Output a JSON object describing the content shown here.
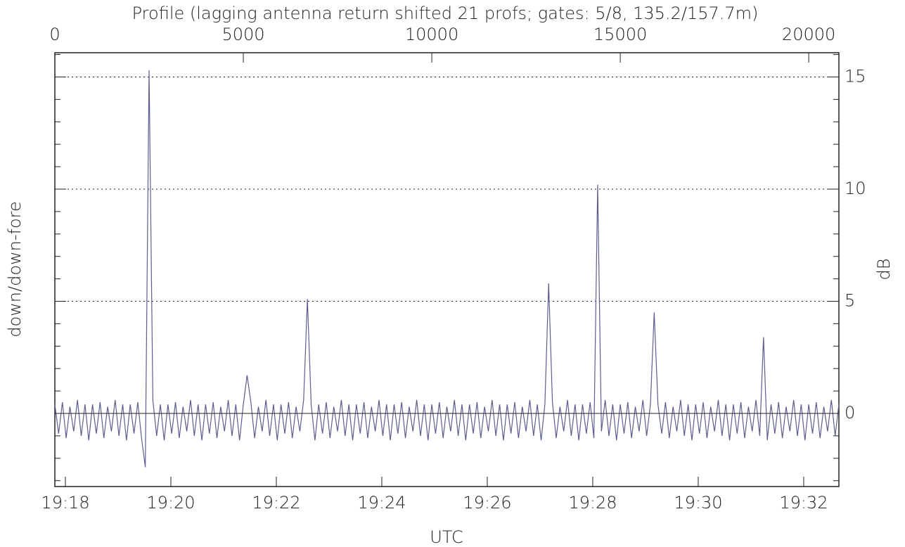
{
  "chart_data": {
    "type": "line",
    "title": "Profile (lagging antenna return shifted 21 profs; gates: 5/8, 135.2/157.7m)",
    "xlabel": "UTC",
    "ylabel": "down/down-fore",
    "ylabel_right": "dB",
    "xlim": [
      0,
      20800
    ],
    "ylim": [
      -3.26,
      16.08
    ],
    "xticks": [
      0,
      5000,
      10000,
      15000,
      20000
    ],
    "x2ticks": [
      {
        "value": 280,
        "label": "19:18"
      },
      {
        "value": 3078,
        "label": "19:20"
      },
      {
        "value": 5876,
        "label": "19:22"
      },
      {
        "value": 8674,
        "label": "19:24"
      },
      {
        "value": 11472,
        "label": "19:26"
      },
      {
        "value": 14270,
        "label": "19:28"
      },
      {
        "value": 17068,
        "label": "19:30"
      },
      {
        "value": 19866,
        "label": "19:32"
      }
    ],
    "yticks": [
      0,
      5,
      10,
      15
    ],
    "yminorticks": [
      -3,
      -2,
      -1,
      1,
      2,
      3,
      4,
      6,
      7,
      8,
      9,
      11,
      12,
      13,
      14,
      16
    ],
    "grid": true,
    "series": [
      {
        "color": "#5d5d92",
        "x": [
          0,
          100,
          200,
          300,
          400,
          500,
          600,
          700,
          800,
          900,
          1000,
          1100,
          1200,
          1300,
          1400,
          1500,
          1600,
          1700,
          1800,
          1900,
          2000,
          2100,
          2200,
          2300,
          2400,
          2500,
          2600,
          2700,
          2800,
          2900,
          3000,
          3100,
          3200,
          3300,
          3400,
          3500,
          3600,
          3700,
          3800,
          3900,
          4000,
          4100,
          4200,
          4300,
          4400,
          4500,
          4600,
          4700,
          4800,
          4900,
          5000,
          5100,
          5200,
          5300,
          5400,
          5500,
          5600,
          5700,
          5800,
          5900,
          6000,
          6100,
          6200,
          6300,
          6400,
          6500,
          6600,
          6700,
          6800,
          6900,
          7000,
          7100,
          7200,
          7300,
          7400,
          7500,
          7600,
          7700,
          7800,
          7900,
          8000,
          8100,
          8200,
          8300,
          8400,
          8500,
          8600,
          8700,
          8800,
          8900,
          9000,
          9100,
          9200,
          9300,
          9400,
          9500,
          9600,
          9700,
          9800,
          9900,
          10000,
          10100,
          10200,
          10300,
          10400,
          10500,
          10600,
          10700,
          10800,
          10900,
          11000,
          11100,
          11200,
          11300,
          11400,
          11500,
          11600,
          11700,
          11800,
          11900,
          12000,
          12100,
          12200,
          12300,
          12400,
          12500,
          12600,
          12700,
          12800,
          12900,
          13000,
          13100,
          13200,
          13300,
          13400,
          13500,
          13600,
          13700,
          13800,
          13900,
          14000,
          14100,
          14200,
          14300,
          14400,
          14500,
          14600,
          14700,
          14800,
          14900,
          15000,
          15100,
          15200,
          15300,
          15400,
          15500,
          15600,
          15700,
          15800,
          15900,
          16000,
          16100,
          16200,
          16300,
          16400,
          16500,
          16600,
          16700,
          16800,
          16900,
          17000,
          17100,
          17200,
          17300,
          17400,
          17500,
          17600,
          17700,
          17800,
          17900,
          18000,
          18100,
          18200,
          18300,
          18400,
          18500,
          18600,
          18700,
          18800,
          18900,
          19000,
          19100,
          19200,
          19300,
          19400,
          19500,
          19600,
          19700,
          19800,
          19900,
          20000,
          20100,
          20200,
          20300,
          20400,
          20500,
          20600,
          20700,
          20800
        ],
        "values": [
          0.4,
          -0.9,
          0.5,
          -1.1,
          0.3,
          -0.8,
          0.6,
          -1.0,
          0.4,
          -1.2,
          0.4,
          -0.9,
          0.5,
          -1.1,
          0.3,
          -0.8,
          0.6,
          -1.0,
          0.4,
          -1.2,
          0.4,
          -0.9,
          0.5,
          -1.1,
          -2.4,
          15.3,
          0.6,
          -1.0,
          0.4,
          -1.2,
          0.4,
          -0.9,
          0.5,
          -1.1,
          0.3,
          -0.8,
          0.6,
          -1.0,
          0.4,
          -1.2,
          0.4,
          -0.9,
          0.5,
          -1.1,
          0.3,
          -0.8,
          0.6,
          -1.0,
          0.4,
          -1.2,
          0.4,
          1.7,
          0.5,
          -1.1,
          0.3,
          -0.8,
          0.6,
          -1.0,
          0.4,
          -1.2,
          0.4,
          -0.9,
          0.5,
          -1.1,
          0.3,
          -0.8,
          0.6,
          5.1,
          0.4,
          -1.2,
          0.4,
          -0.9,
          0.5,
          -1.1,
          0.3,
          -0.8,
          0.6,
          -1.0,
          0.4,
          -1.2,
          0.4,
          -0.9,
          0.5,
          -1.1,
          0.3,
          -0.8,
          0.6,
          -1.0,
          0.4,
          -1.2,
          0.4,
          -0.9,
          0.5,
          -1.1,
          0.3,
          -0.8,
          0.6,
          -1.0,
          0.4,
          -1.2,
          0.4,
          -0.9,
          0.5,
          -1.1,
          0.3,
          -0.8,
          0.6,
          -1.0,
          0.4,
          -1.2,
          0.4,
          -0.9,
          0.5,
          -1.1,
          0.3,
          -0.8,
          0.6,
          -1.0,
          0.4,
          -1.2,
          0.4,
          -0.9,
          0.5,
          -1.1,
          0.3,
          -0.8,
          0.6,
          -1.0,
          0.4,
          -1.2,
          0.4,
          5.8,
          0.5,
          -1.1,
          0.3,
          -0.8,
          0.6,
          -1.0,
          0.4,
          -1.2,
          0.4,
          -0.9,
          0.5,
          -1.1,
          10.2,
          -0.8,
          0.6,
          -1.0,
          0.4,
          -1.2,
          0.4,
          -0.9,
          0.5,
          -1.1,
          0.3,
          -0.8,
          0.6,
          -1.0,
          0.4,
          4.5,
          0.4,
          -0.9,
          0.5,
          -1.1,
          0.3,
          -0.8,
          0.6,
          -1.0,
          0.4,
          -1.2,
          0.4,
          -0.9,
          0.5,
          -1.1,
          0.3,
          -0.8,
          0.6,
          -1.0,
          0.4,
          -1.2,
          0.4,
          -0.9,
          0.5,
          -1.1,
          0.3,
          -0.8,
          0.6,
          -1.0,
          3.4,
          -1.2,
          0.4,
          -0.9,
          0.5,
          -1.1,
          0.3,
          -0.8,
          0.6,
          -1.0,
          0.4,
          -1.2,
          0.4,
          -0.9,
          0.5,
          -1.1,
          0.3,
          -0.8,
          0.6,
          -1.0,
          0.4
        ]
      }
    ]
  }
}
